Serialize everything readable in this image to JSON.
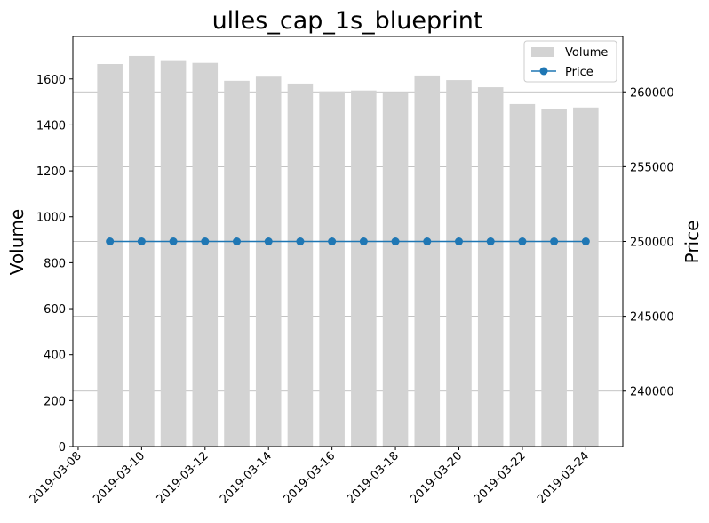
{
  "chart_data": {
    "type": "bar+line",
    "title": "ulles_cap_1s_blueprint",
    "xlabel": "",
    "ylabel_left": "Volume",
    "ylabel_right": "Price",
    "dates": [
      "2019-03-09",
      "2019-03-10",
      "2019-03-11",
      "2019-03-12",
      "2019-03-13",
      "2019-03-14",
      "2019-03-15",
      "2019-03-16",
      "2019-03-17",
      "2019-03-18",
      "2019-03-19",
      "2019-03-20",
      "2019-03-21",
      "2019-03-22",
      "2019-03-23",
      "2019-03-24"
    ],
    "series": [
      {
        "name": "Volume",
        "kind": "bar",
        "axis": "left",
        "color": "#d3d3d3",
        "values": [
          1665,
          1700,
          1678,
          1670,
          1592,
          1610,
          1580,
          1546,
          1550,
          1541,
          1615,
          1595,
          1564,
          1491,
          1470,
          1476
        ]
      },
      {
        "name": "Price",
        "kind": "line",
        "axis": "right",
        "color": "#1f77b4",
        "values": [
          250000,
          250000,
          250000,
          250000,
          250000,
          250000,
          250000,
          250000,
          250000,
          250000,
          250000,
          250000,
          250000,
          250000,
          250000,
          250000
        ]
      }
    ],
    "x_ticks": [
      "2019-03-08",
      "2019-03-10",
      "2019-03-12",
      "2019-03-14",
      "2019-03-16",
      "2019-03-18",
      "2019-03-20",
      "2019-03-22",
      "2019-03-24"
    ],
    "x_range": [
      "2019-03-07T20:00",
      "2019-03-25T04:00"
    ],
    "ylim_left": [
      0,
      1785
    ],
    "yticks_left": [
      0,
      200,
      400,
      600,
      800,
      1000,
      1200,
      1400,
      1600
    ],
    "ylim_right": [
      236300,
      263700
    ],
    "yticks_right": [
      240000,
      245000,
      250000,
      255000,
      260000
    ],
    "grid": "horizontal lines on right axis",
    "legend": "top-right"
  }
}
